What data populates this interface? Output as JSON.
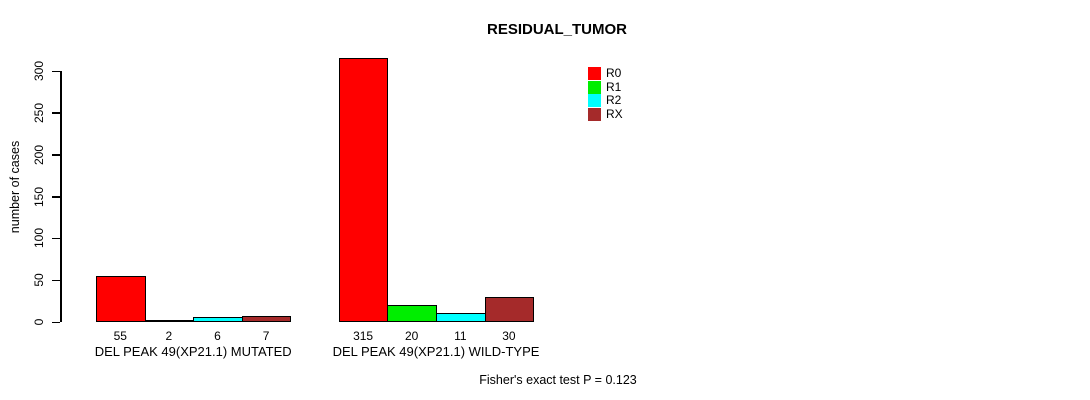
{
  "chart_data": {
    "type": "bar",
    "title": "RESIDUAL_TUMOR",
    "ylabel": "number of cases",
    "xlabel": "",
    "ylim": [
      0,
      300
    ],
    "yticks": [
      0,
      50,
      100,
      150,
      200,
      250,
      300
    ],
    "grid": false,
    "legend_position": "top-right",
    "categories": [
      "DEL PEAK 49(XP21.1) MUTATED",
      "DEL PEAK 49(XP21.1) WILD-TYPE"
    ],
    "series": [
      {
        "name": "R0",
        "color": "#ff0000",
        "values": [
          55,
          315
        ]
      },
      {
        "name": "R1",
        "color": "#00ee00",
        "values": [
          2,
          20
        ]
      },
      {
        "name": "R2",
        "color": "#00ffff",
        "values": [
          6,
          11
        ]
      },
      {
        "name": "RX",
        "color": "#a52a2a",
        "values": [
          7,
          30
        ]
      }
    ],
    "bar_value_labels": [
      [
        55,
        2,
        6,
        7
      ],
      [
        315,
        20,
        11,
        30
      ]
    ],
    "bar_border_color": "#000000",
    "annotation": "Fisher's exact test P = 0.123"
  }
}
